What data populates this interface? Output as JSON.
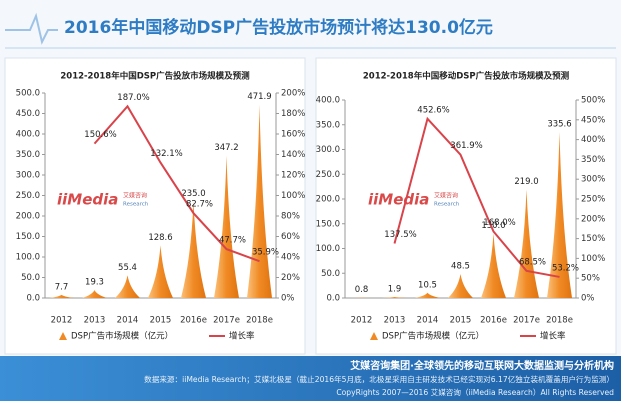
{
  "header": {
    "title": "2016年中国移动DSP广告投放市场预计将达130.0亿元"
  },
  "watermark": {
    "brand": "iiMedia",
    "cn": "艾媒咨询",
    "en": "Research"
  },
  "chart_data": [
    {
      "type": "bar",
      "title": "2012-2018年中国DSP广告投放市场规模及预测",
      "categories": [
        "2012",
        "2013",
        "2014",
        "2015",
        "2016e",
        "2017e",
        "2018e"
      ],
      "series": [
        {
          "name": "DSP广告市场规模（亿元）",
          "color": "#f08a24",
          "values": [
            7.7,
            19.3,
            55.4,
            128.6,
            235.0,
            347.2,
            471.9
          ],
          "value_labels": [
            "7.7",
            "19.3",
            "55.4",
            "128.6",
            "235.0",
            "347.2",
            "471.9"
          ]
        },
        {
          "name": "增长率",
          "type": "line",
          "axis": "y2",
          "color": "#d9434a",
          "values": [
            null,
            150.6,
            187.0,
            132.1,
            82.7,
            47.7,
            35.9
          ],
          "value_labels": [
            null,
            "150.6%",
            "187.0%",
            "132.1%",
            "82.7%",
            "47.7%",
            "35.9%"
          ]
        }
      ],
      "ylim": [
        0,
        500
      ],
      "yticks": [
        {
          "value": 0,
          "label": "0.0"
        },
        {
          "value": 50,
          "label": "50.0"
        },
        {
          "value": 100,
          "label": "100.0"
        },
        {
          "value": 150,
          "label": "150.0"
        },
        {
          "value": 200,
          "label": "200.0"
        },
        {
          "value": 250,
          "label": "250.0"
        },
        {
          "value": 300,
          "label": "300.0"
        },
        {
          "value": 350,
          "label": "350.0"
        },
        {
          "value": 400,
          "label": "400.0"
        },
        {
          "value": 450,
          "label": "450.0"
        },
        {
          "value": 500,
          "label": "500.0"
        }
      ],
      "y2lim": [
        0,
        200
      ],
      "y2ticks": [
        {
          "value": 0,
          "label": "0%"
        },
        {
          "value": 20,
          "label": "20%"
        },
        {
          "value": 40,
          "label": "40%"
        },
        {
          "value": 60,
          "label": "60%"
        },
        {
          "value": 80,
          "label": "80%"
        },
        {
          "value": 100,
          "label": "100%"
        },
        {
          "value": 120,
          "label": "120%"
        },
        {
          "value": 140,
          "label": "140%"
        },
        {
          "value": 160,
          "label": "160%"
        },
        {
          "value": 180,
          "label": "180%"
        },
        {
          "value": 200,
          "label": "200%"
        }
      ]
    },
    {
      "type": "bar",
      "title": "2012-2018年中国移动DSP广告投放市场规模及预测",
      "categories": [
        "2012",
        "2013",
        "2014",
        "2015",
        "2016e",
        "2017e",
        "2018e"
      ],
      "series": [
        {
          "name": "DSP广告市场规模（亿元）",
          "color": "#f08a24",
          "values": [
            0.8,
            1.9,
            10.5,
            48.5,
            130.0,
            219.0,
            335.6
          ],
          "value_labels": [
            "0.8",
            "1.9",
            "10.5",
            "48.5",
            "130.0",
            "219.0",
            "335.6"
          ]
        },
        {
          "name": "增长率",
          "type": "line",
          "axis": "y2",
          "color": "#d9434a",
          "values": [
            null,
            137.5,
            452.6,
            361.9,
            168.0,
            68.5,
            53.2
          ],
          "value_labels": [
            null,
            "137.5%",
            "452.6%",
            "361.9%",
            "168.0%",
            "68.5%",
            "53.2%"
          ]
        }
      ],
      "ylim": [
        0,
        400
      ],
      "yticks": [
        {
          "value": 0,
          "label": "0.0"
        },
        {
          "value": 50,
          "label": "50.0"
        },
        {
          "value": 100,
          "label": "100.0"
        },
        {
          "value": 150,
          "label": "150.0"
        },
        {
          "value": 200,
          "label": "200.0"
        },
        {
          "value": 250,
          "label": "250.0"
        },
        {
          "value": 300,
          "label": "300.0"
        },
        {
          "value": 350,
          "label": "350.0"
        },
        {
          "value": 400,
          "label": "400.0"
        }
      ],
      "y2lim": [
        0,
        500
      ],
      "y2ticks": [
        {
          "value": 0,
          "label": "0%"
        },
        {
          "value": 50,
          "label": "50%"
        },
        {
          "value": 100,
          "label": "100%"
        },
        {
          "value": 150,
          "label": "150%"
        },
        {
          "value": 200,
          "label": "200%"
        },
        {
          "value": 250,
          "label": "250%"
        },
        {
          "value": 300,
          "label": "300%"
        },
        {
          "value": 350,
          "label": "350%"
        },
        {
          "value": 400,
          "label": "400%"
        },
        {
          "value": 450,
          "label": "450%"
        },
        {
          "value": 500,
          "label": "500%"
        }
      ]
    }
  ],
  "footer": {
    "slogan": "艾媒咨询集团·全球领先的移动互联网大数据监测与分析机构",
    "source": "数据来源：iiMedia Research；艾媒北极星（截止2016年5月底，北极星采用自主研发技术已经实现对6.17亿独立装机覆盖用户行为监测）",
    "copyright": "CopyRights 2007—2016 艾媒咨询（iiMedia Research）All Rights Reserved"
  }
}
